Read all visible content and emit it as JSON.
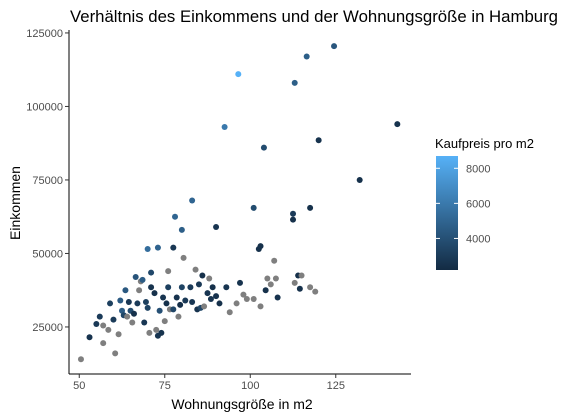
{
  "chart_data": {
    "type": "scatter",
    "title": "Verhältnis des Einkommens und der Wohnungsgröße in Hamburg",
    "xlabel": "Wohnungsgröße in m2",
    "ylabel": "Einkommen",
    "xlim": [
      47,
      147
    ],
    "ylim": [
      9000,
      126000
    ],
    "x_ticks": [
      50,
      75,
      100,
      125
    ],
    "y_ticks": [
      25000,
      50000,
      75000,
      100000,
      125000
    ],
    "x_tick_labels": [
      "50",
      "75",
      "100",
      "125"
    ],
    "y_tick_labels": [
      "25000",
      "50000",
      "75000",
      "100000",
      "125000"
    ],
    "grid": false,
    "legend": {
      "title": "Kaufpreis pro m2",
      "placement": "right",
      "min": 2200,
      "max": 8700,
      "ticks": [
        4000,
        6000,
        8000
      ],
      "tick_labels": [
        "4000",
        "6000",
        "8000"
      ],
      "color_low": "#132B43",
      "color_high": "#56B1F7",
      "na_color": "#7f7f7f"
    },
    "points": [
      {
        "x": 50.5,
        "y": 14000,
        "price": null
      },
      {
        "x": 53,
        "y": 21500,
        "price": 2600
      },
      {
        "x": 55,
        "y": 26000,
        "price": 2900
      },
      {
        "x": 56,
        "y": 28500,
        "price": 3000
      },
      {
        "x": 57,
        "y": 19500,
        "price": null
      },
      {
        "x": 57,
        "y": 25500,
        "price": null
      },
      {
        "x": 58.5,
        "y": 24000,
        "price": null
      },
      {
        "x": 59,
        "y": 33000,
        "price": 3200
      },
      {
        "x": 60,
        "y": 27500,
        "price": 3000
      },
      {
        "x": 60.5,
        "y": 16000,
        "price": null
      },
      {
        "x": 61.5,
        "y": 22500,
        "price": null
      },
      {
        "x": 62,
        "y": 34000,
        "price": 4500
      },
      {
        "x": 62.5,
        "y": 30500,
        "price": 4600
      },
      {
        "x": 63,
        "y": 29000,
        "price": 3500
      },
      {
        "x": 63.5,
        "y": 37500,
        "price": 4400
      },
      {
        "x": 64,
        "y": 28500,
        "price": null
      },
      {
        "x": 64.5,
        "y": 33500,
        "price": 2800
      },
      {
        "x": 65,
        "y": 30500,
        "price": 3800
      },
      {
        "x": 65.5,
        "y": 26500,
        "price": null
      },
      {
        "x": 66,
        "y": 29500,
        "price": 2500
      },
      {
        "x": 66.5,
        "y": 42000,
        "price": 4200
      },
      {
        "x": 67,
        "y": 33000,
        "price": 3000
      },
      {
        "x": 67.5,
        "y": 37500,
        "price": null
      },
      {
        "x": 68,
        "y": 40500,
        "price": null
      },
      {
        "x": 68.5,
        "y": 41000,
        "price": 4600
      },
      {
        "x": 69,
        "y": 26500,
        "price": 2800
      },
      {
        "x": 69.5,
        "y": 33500,
        "price": 3200
      },
      {
        "x": 70,
        "y": 51500,
        "price": 5400
      },
      {
        "x": 70,
        "y": 31500,
        "price": 3400
      },
      {
        "x": 70.5,
        "y": 23000,
        "price": null
      },
      {
        "x": 71,
        "y": 38500,
        "price": 2600
      },
      {
        "x": 71,
        "y": 43500,
        "price": 3600
      },
      {
        "x": 72,
        "y": 36500,
        "price": 2500
      },
      {
        "x": 72.5,
        "y": 24000,
        "price": null
      },
      {
        "x": 73,
        "y": 52000,
        "price": 4900
      },
      {
        "x": 73,
        "y": 22000,
        "price": 2700
      },
      {
        "x": 73.5,
        "y": 30500,
        "price": 4000
      },
      {
        "x": 74,
        "y": 23000,
        "price": 2600
      },
      {
        "x": 74.5,
        "y": 35000,
        "price": 2700
      },
      {
        "x": 75,
        "y": 27000,
        "price": null
      },
      {
        "x": 75.5,
        "y": 33000,
        "price": 2500
      },
      {
        "x": 76,
        "y": 38500,
        "price": 3200
      },
      {
        "x": 76,
        "y": 44000,
        "price": null
      },
      {
        "x": 76.5,
        "y": 31000,
        "price": null
      },
      {
        "x": 77.5,
        "y": 52000,
        "price": 2800
      },
      {
        "x": 77.5,
        "y": 31000,
        "price": 3500
      },
      {
        "x": 78,
        "y": 62500,
        "price": 5000
      },
      {
        "x": 78.5,
        "y": 35000,
        "price": 2600
      },
      {
        "x": 79,
        "y": 28500,
        "price": null
      },
      {
        "x": 79.5,
        "y": 32500,
        "price": 2400
      },
      {
        "x": 80,
        "y": 58000,
        "price": 4700
      },
      {
        "x": 80,
        "y": 38500,
        "price": 3400
      },
      {
        "x": 80.5,
        "y": 48500,
        "price": null
      },
      {
        "x": 81,
        "y": 34000,
        "price": 2900
      },
      {
        "x": 82.5,
        "y": 38500,
        "price": 3000
      },
      {
        "x": 83,
        "y": 68000,
        "price": 5000
      },
      {
        "x": 83,
        "y": 33500,
        "price": 2800
      },
      {
        "x": 84,
        "y": 44500,
        "price": null
      },
      {
        "x": 84.5,
        "y": 31000,
        "price": 2600
      },
      {
        "x": 85,
        "y": 39500,
        "price": 2900
      },
      {
        "x": 85.5,
        "y": 31500,
        "price": 3500
      },
      {
        "x": 86,
        "y": 42500,
        "price": 2500
      },
      {
        "x": 86.5,
        "y": 32000,
        "price": null
      },
      {
        "x": 87.5,
        "y": 36500,
        "price": 2700
      },
      {
        "x": 88,
        "y": 41500,
        "price": null
      },
      {
        "x": 88.5,
        "y": 34500,
        "price": 2700
      },
      {
        "x": 89,
        "y": 38500,
        "price": 2500
      },
      {
        "x": 90,
        "y": 59000,
        "price": 2700
      },
      {
        "x": 90,
        "y": 35500,
        "price": 2600
      },
      {
        "x": 91,
        "y": 33000,
        "price": 2500
      },
      {
        "x": 92.5,
        "y": 93000,
        "price": 6000
      },
      {
        "x": 93,
        "y": 38500,
        "price": 2700
      },
      {
        "x": 94,
        "y": 30000,
        "price": null
      },
      {
        "x": 96,
        "y": 33000,
        "price": null
      },
      {
        "x": 96.5,
        "y": 111000,
        "price": 8700
      },
      {
        "x": 97,
        "y": 40000,
        "price": 2600
      },
      {
        "x": 98,
        "y": 36000,
        "price": null
      },
      {
        "x": 99,
        "y": 34500,
        "price": null
      },
      {
        "x": 101,
        "y": 65500,
        "price": 3800
      },
      {
        "x": 101,
        "y": 34500,
        "price": null
      },
      {
        "x": 102.5,
        "y": 51500,
        "price": 2500
      },
      {
        "x": 103,
        "y": 52500,
        "price": 2500
      },
      {
        "x": 103,
        "y": 32000,
        "price": null
      },
      {
        "x": 104,
        "y": 86000,
        "price": 3800
      },
      {
        "x": 104.5,
        "y": 37500,
        "price": 2500
      },
      {
        "x": 105,
        "y": 41500,
        "price": null
      },
      {
        "x": 106,
        "y": 39500,
        "price": null
      },
      {
        "x": 107,
        "y": 47500,
        "price": null
      },
      {
        "x": 107.5,
        "y": 41500,
        "price": null
      },
      {
        "x": 108,
        "y": 35000,
        "price": 2600
      },
      {
        "x": 112.5,
        "y": 63500,
        "price": 3000
      },
      {
        "x": 112.5,
        "y": 61500,
        "price": 2500
      },
      {
        "x": 113,
        "y": 108000,
        "price": 4700
      },
      {
        "x": 113,
        "y": 40000,
        "price": null
      },
      {
        "x": 114,
        "y": 42500,
        "price": 2500
      },
      {
        "x": 114.5,
        "y": 38000,
        "price": 2500
      },
      {
        "x": 115,
        "y": 42500,
        "price": null
      },
      {
        "x": 116.5,
        "y": 117000,
        "price": 4700
      },
      {
        "x": 117.5,
        "y": 65500,
        "price": 2500
      },
      {
        "x": 117.5,
        "y": 38500,
        "price": null
      },
      {
        "x": 119,
        "y": 37000,
        "price": null
      },
      {
        "x": 120,
        "y": 88500,
        "price": 2600
      },
      {
        "x": 124.5,
        "y": 120500,
        "price": 4300
      },
      {
        "x": 132,
        "y": 75000,
        "price": 2500
      },
      {
        "x": 143,
        "y": 94000,
        "price": 2600
      }
    ]
  }
}
